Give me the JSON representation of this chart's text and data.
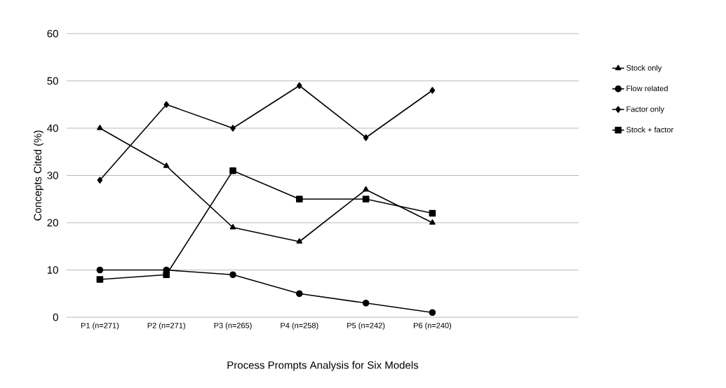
{
  "chart_data": {
    "type": "line",
    "xlabel": "Process Prompts Analysis for Six Models",
    "ylabel": "Concepts Cited (%)",
    "categories": [
      "P1 (n=271)",
      "P2 (n=271)",
      "P3 (n=265)",
      "P4 (n=258)",
      "P5 (n=242)",
      "P6 (n=240)"
    ],
    "series": [
      {
        "name": "Stock only",
        "color": "#000000",
        "marker": "triangle",
        "values": [
          40,
          32,
          19,
          16,
          27,
          20
        ]
      },
      {
        "name": "Flow related",
        "color": "#000000",
        "marker": "circle",
        "values": [
          10,
          10,
          9,
          5,
          3,
          1
        ]
      },
      {
        "name": "Factor only",
        "color": "#000000",
        "marker": "diamond",
        "values": [
          29,
          45,
          40,
          49,
          38,
          48
        ]
      },
      {
        "name": "Stock + factor",
        "color": "#000000",
        "marker": "square",
        "values": [
          8,
          9,
          31,
          25,
          25,
          22
        ]
      }
    ],
    "ylim": [
      0,
      60
    ],
    "yticks": [
      0,
      10,
      20,
      30,
      40,
      50,
      60
    ],
    "grid": "y",
    "legend": "right",
    "line_style": "solid"
  }
}
